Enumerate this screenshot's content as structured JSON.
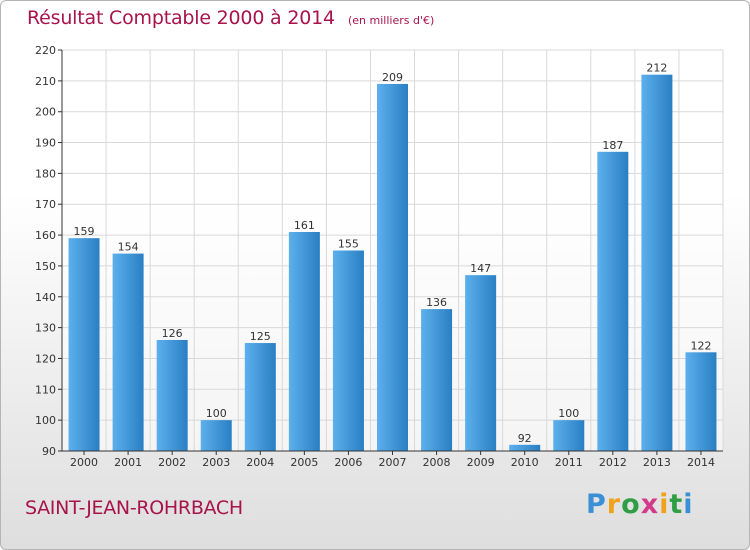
{
  "header": {
    "title": "Résultat Comptable 2000 à 2014",
    "subtitle": "(en milliers d'€)"
  },
  "footer": {
    "commune": "SAINT-JEAN-ROHRBACH",
    "brand_letters": [
      "P",
      "r",
      "o",
      "x",
      "i",
      "t",
      "i"
    ]
  },
  "colors": {
    "title": "#a8144a",
    "bar_light": "#5cb0ec",
    "bar_dark": "#2a7fc4",
    "grid": "#d9d9d9",
    "axis": "#333333"
  },
  "chart_data": {
    "type": "bar",
    "title": "Résultat Comptable 2000 à 2014",
    "subtitle": "(en milliers d'€)",
    "xlabel": "",
    "ylabel": "",
    "ylim": [
      90,
      220
    ],
    "yticks": [
      90,
      100,
      110,
      120,
      130,
      140,
      150,
      160,
      170,
      180,
      190,
      200,
      210,
      220
    ],
    "grid": true,
    "categories": [
      "2000",
      "2001",
      "2002",
      "2003",
      "2004",
      "2005",
      "2006",
      "2007",
      "2008",
      "2009",
      "2010",
      "2011",
      "2012",
      "2013",
      "2014"
    ],
    "values": [
      159,
      154,
      126,
      100,
      125,
      161,
      155,
      209,
      136,
      147,
      92,
      100,
      187,
      212,
      122
    ]
  }
}
